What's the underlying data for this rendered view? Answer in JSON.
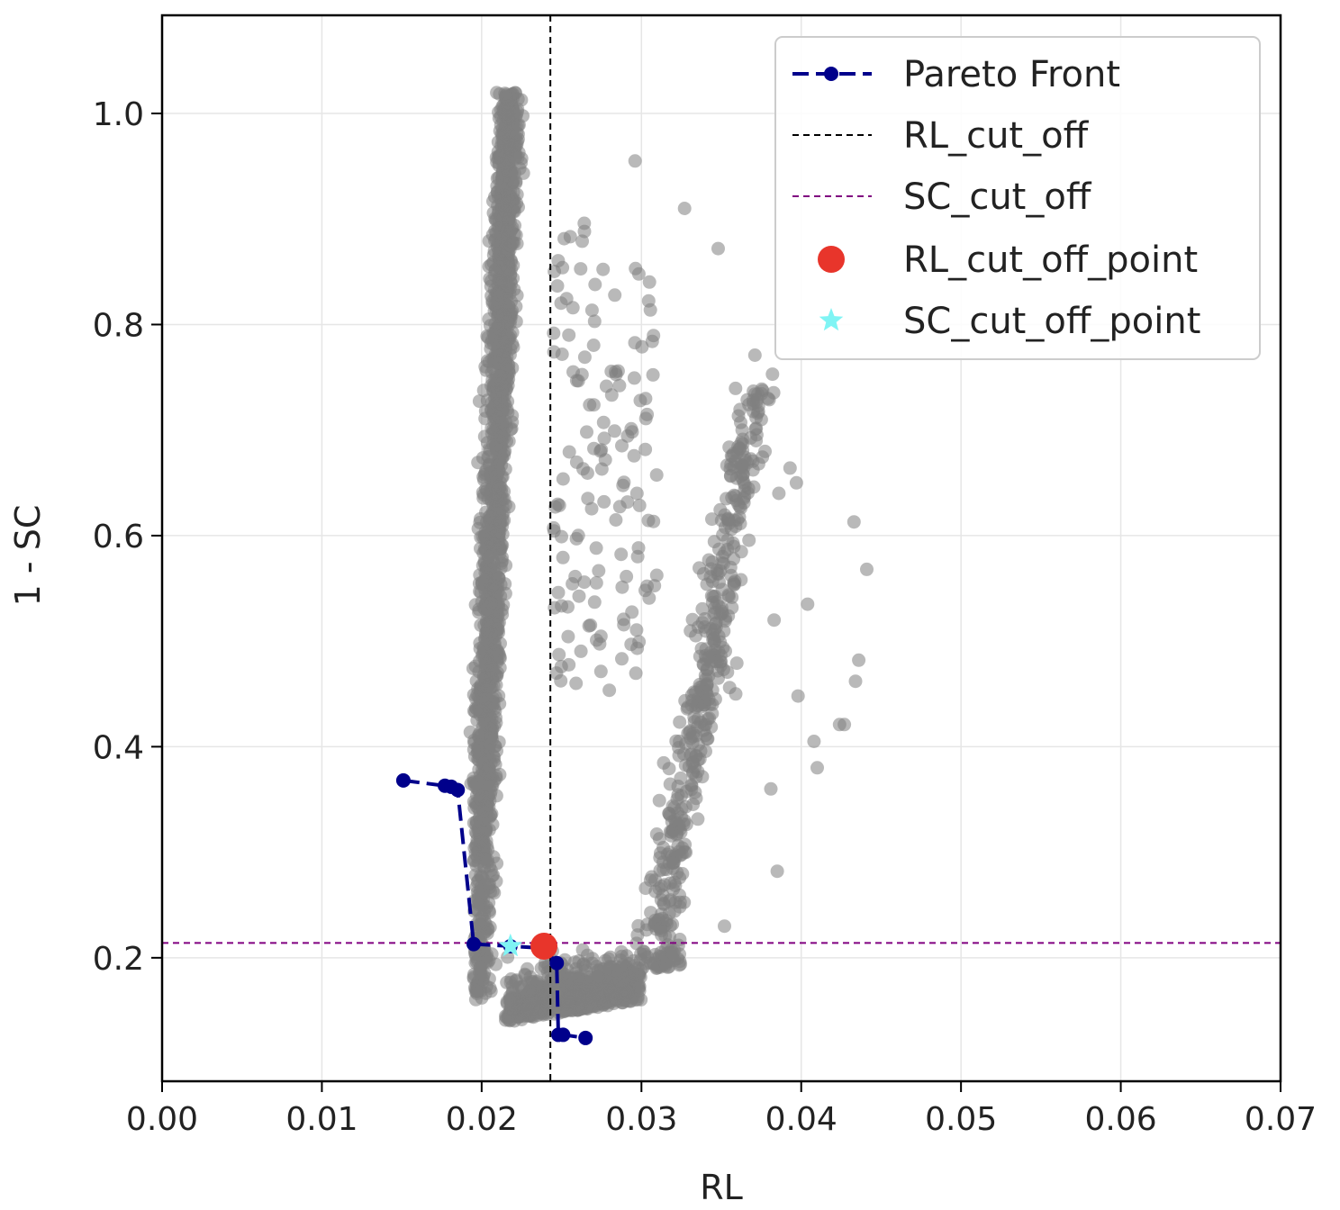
{
  "chart_data": {
    "type": "scatter",
    "title": "",
    "xlabel": "RL",
    "ylabel": "1 - SC",
    "xlim": [
      0.0,
      0.07
    ],
    "ylim": [
      0.083,
      1.093
    ],
    "x_ticks": [
      {
        "value": 0.0,
        "label": "0.00"
      },
      {
        "value": 0.01,
        "label": "0.01"
      },
      {
        "value": 0.02,
        "label": "0.02"
      },
      {
        "value": 0.03,
        "label": "0.03"
      },
      {
        "value": 0.04,
        "label": "0.04"
      },
      {
        "value": 0.05,
        "label": "0.05"
      },
      {
        "value": 0.06,
        "label": "0.06"
      },
      {
        "value": 0.07,
        "label": "0.07"
      }
    ],
    "y_ticks": [
      {
        "value": 0.2,
        "label": "0.2"
      },
      {
        "value": 0.4,
        "label": "0.4"
      },
      {
        "value": 0.6,
        "label": "0.6"
      },
      {
        "value": 0.8,
        "label": "0.8"
      },
      {
        "value": 1.0,
        "label": "1.0"
      }
    ],
    "grid": true,
    "legend_position": "top-right",
    "colors": {
      "scatter": "#808080",
      "pareto": "#00008b",
      "rl_cut_off": "#000000",
      "sc_cut_off": "#800080",
      "rl_point": "#e8352b",
      "sc_point": "#7ff4f4"
    },
    "series": [
      {
        "name": "Pareto Front",
        "style": "dashed-line-with-dots",
        "x": [
          0.0151,
          0.0177,
          0.0181,
          0.0185,
          0.0195,
          0.0218,
          0.0239,
          0.0247,
          0.0248,
          0.0251,
          0.0265
        ],
        "y": [
          0.368,
          0.363,
          0.362,
          0.359,
          0.213,
          0.211,
          0.209,
          0.195,
          0.127,
          0.127,
          0.124
        ]
      },
      {
        "name": "RL_cut_off",
        "style": "vertical-dashed-line",
        "x": 0.0243
      },
      {
        "name": "SC_cut_off",
        "style": "horizontal-dashed-line",
        "y": 0.214
      },
      {
        "name": "RL_cut_off_point",
        "marker": "circle",
        "x": 0.0239,
        "y": 0.211
      },
      {
        "name": "SC_cut_off_point",
        "marker": "star",
        "x": 0.0218,
        "y": 0.211
      }
    ],
    "outlier_points": {
      "x": [
        0.0296,
        0.0327,
        0.0348,
        0.0371,
        0.0382,
        0.0393,
        0.0397,
        0.0386,
        0.0433,
        0.0441,
        0.0427,
        0.0424,
        0.0436,
        0.0434,
        0.0408,
        0.041,
        0.0404,
        0.0383,
        0.0385,
        0.0381,
        0.0398,
        0.0375,
        0.0363,
        0.0359,
        0.0352
      ],
      "y": [
        0.955,
        0.91,
        0.872,
        0.771,
        0.753,
        0.664,
        0.65,
        0.64,
        0.613,
        0.568,
        0.421,
        0.421,
        0.482,
        0.462,
        0.405,
        0.38,
        0.535,
        0.52,
        0.282,
        0.36,
        0.448,
        0.71,
        0.7,
        0.45,
        0.23
      ]
    }
  }
}
